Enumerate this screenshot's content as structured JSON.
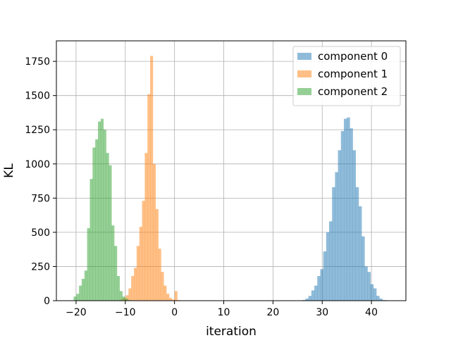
{
  "chart_data": {
    "type": "histogram",
    "xlabel": "iteration",
    "ylabel": "KL",
    "xlim": [
      -24,
      47
    ],
    "ylim": [
      0,
      1900
    ],
    "xticks": [
      -20,
      -10,
      0,
      10,
      20,
      30,
      40
    ],
    "xtick_labels": [
      "−20",
      "−10",
      "0",
      "10",
      "20",
      "30",
      "40"
    ],
    "yticks": [
      0,
      250,
      500,
      750,
      1000,
      1250,
      1500,
      1750
    ],
    "grid": true,
    "legend_position": "top-right",
    "bar_alpha": 0.5,
    "series": [
      {
        "name": "component 0",
        "color": "#1f77b4",
        "bin_width": 0.6,
        "bins": [
          [
            26.0,
            5
          ],
          [
            26.6,
            15
          ],
          [
            27.2,
            35
          ],
          [
            27.8,
            75
          ],
          [
            28.4,
            110
          ],
          [
            29.0,
            180
          ],
          [
            29.6,
            230
          ],
          [
            30.2,
            360
          ],
          [
            30.8,
            500
          ],
          [
            31.4,
            580
          ],
          [
            32.0,
            830
          ],
          [
            32.6,
            940
          ],
          [
            33.2,
            1100
          ],
          [
            33.8,
            1240
          ],
          [
            34.4,
            1330
          ],
          [
            35.0,
            1340
          ],
          [
            35.6,
            1260
          ],
          [
            36.2,
            1100
          ],
          [
            36.8,
            830
          ],
          [
            37.4,
            690
          ],
          [
            38.0,
            470
          ],
          [
            38.6,
            250
          ],
          [
            39.2,
            210
          ],
          [
            39.8,
            120
          ],
          [
            40.4,
            90
          ],
          [
            41.0,
            35
          ],
          [
            41.6,
            15
          ],
          [
            42.2,
            5
          ],
          [
            42.8,
            3
          ],
          [
            43.4,
            2
          ]
        ]
      },
      {
        "name": "component 1",
        "color": "#ff7f0e",
        "bin_width": 0.55,
        "bins": [
          [
            -11.0,
            10
          ],
          [
            -10.45,
            20
          ],
          [
            -9.9,
            40
          ],
          [
            -9.35,
            90
          ],
          [
            -8.8,
            180
          ],
          [
            -8.25,
            240
          ],
          [
            -7.7,
            400
          ],
          [
            -7.15,
            540
          ],
          [
            -6.6,
            730
          ],
          [
            -6.05,
            1080
          ],
          [
            -5.5,
            1510
          ],
          [
            -4.95,
            1790
          ],
          [
            -4.4,
            1000
          ],
          [
            -3.85,
            670
          ],
          [
            -3.3,
            380
          ],
          [
            -2.75,
            210
          ],
          [
            -2.2,
            110
          ],
          [
            -1.65,
            50
          ],
          [
            -1.1,
            20
          ],
          [
            -0.55,
            8
          ],
          [
            0.0,
            70
          ],
          [
            0.55,
            5
          ]
        ]
      },
      {
        "name": "component 2",
        "color": "#2ca02c",
        "bin_width": 0.55,
        "bins": [
          [
            -20.5,
            30
          ],
          [
            -19.95,
            50
          ],
          [
            -19.4,
            110
          ],
          [
            -18.85,
            160
          ],
          [
            -18.3,
            220
          ],
          [
            -17.75,
            530
          ],
          [
            -17.2,
            890
          ],
          [
            -16.65,
            1120
          ],
          [
            -16.1,
            1180
          ],
          [
            -15.55,
            1310
          ],
          [
            -15.0,
            1330
          ],
          [
            -14.45,
            1250
          ],
          [
            -13.9,
            1080
          ],
          [
            -13.35,
            990
          ],
          [
            -12.8,
            550
          ],
          [
            -12.25,
            400
          ],
          [
            -11.7,
            180
          ],
          [
            -11.15,
            70
          ],
          [
            -10.6,
            30
          ],
          [
            -10.05,
            15
          ],
          [
            -9.5,
            5
          ]
        ]
      }
    ]
  }
}
